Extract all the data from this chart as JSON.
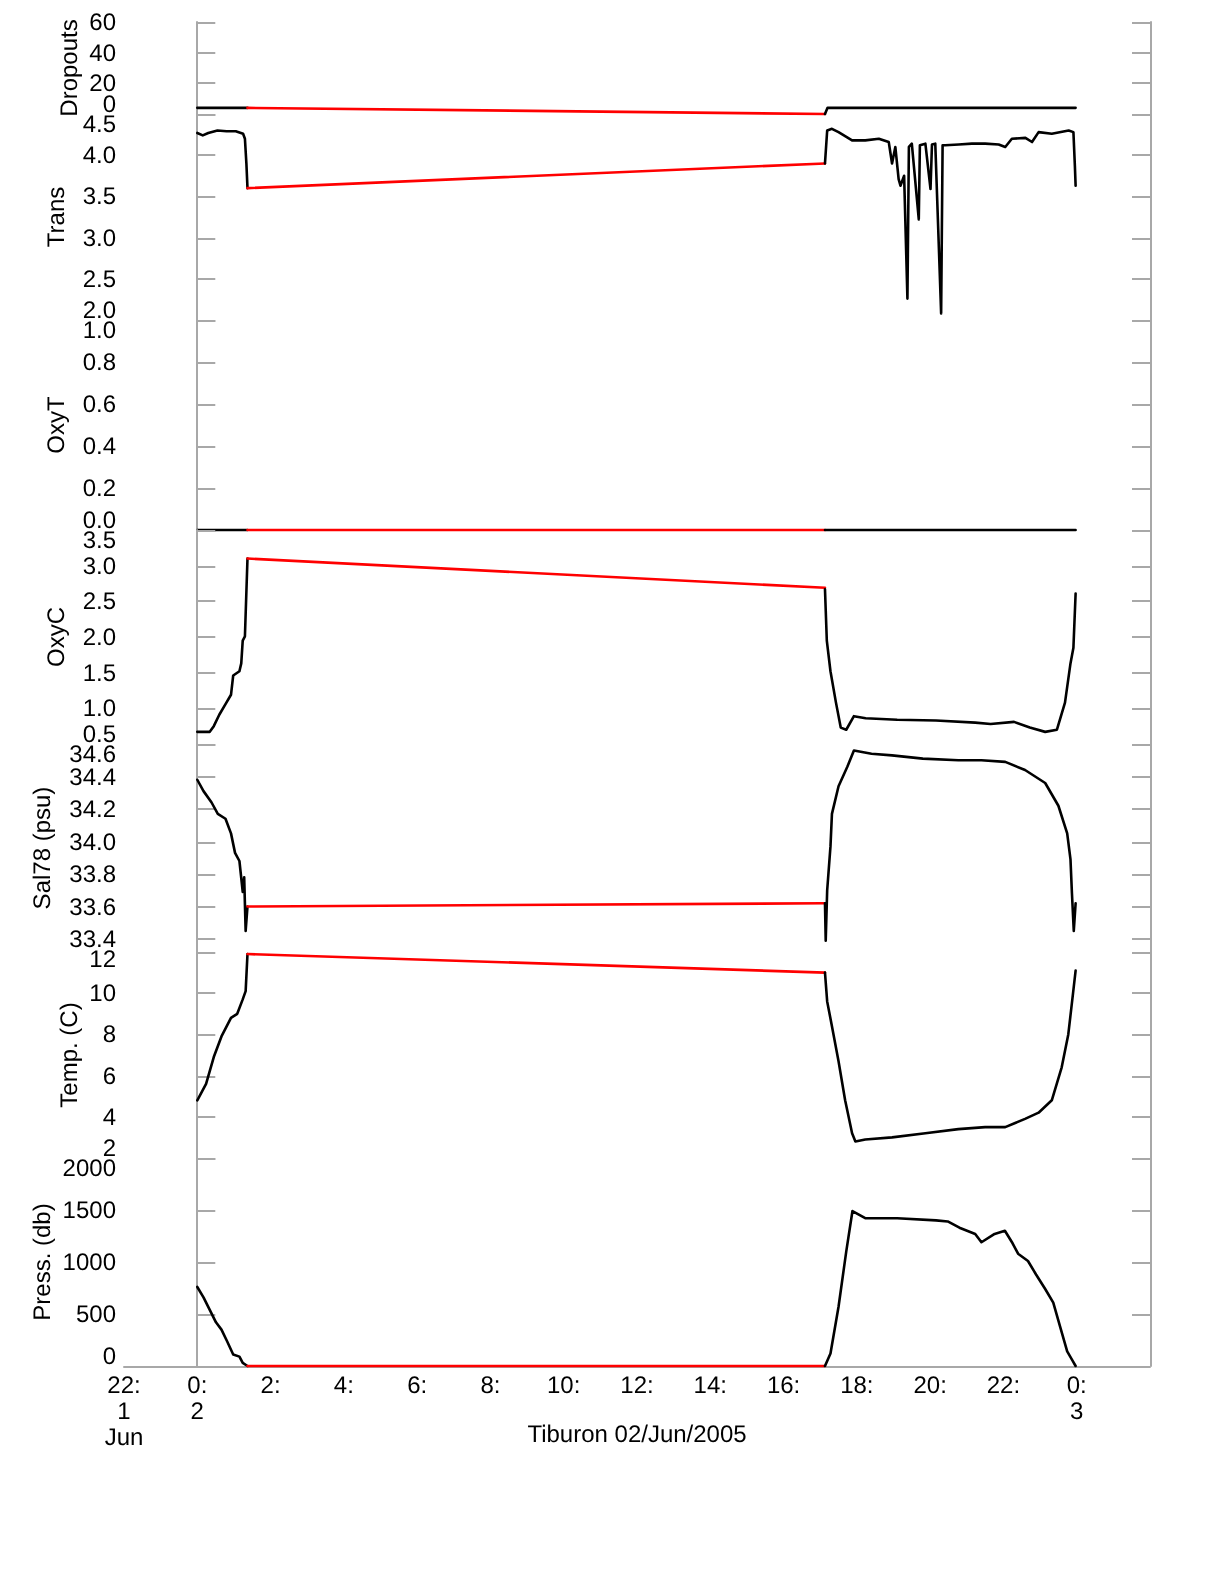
{
  "chart_data": [
    {
      "type": "line",
      "ylabel": "Dropouts",
      "xlim": [
        -2,
        26
      ],
      "ylim": [
        0,
        60
      ],
      "yticks": [
        0,
        20,
        40,
        60
      ],
      "tick_labels": "y",
      "series": [
        {
          "color": "#000000",
          "x": [
            0,
            0.35,
            0.7,
            1.05,
            1.37
          ],
          "values": [
            4,
            4,
            4,
            4,
            4
          ]
        },
        {
          "color": "#ff0000",
          "x": [
            1.37,
            17.13
          ],
          "values": [
            4,
            0
          ]
        },
        {
          "color": "#000000",
          "x": [
            17.13,
            17.2,
            18,
            19,
            20,
            21,
            22,
            23,
            23.97
          ],
          "values": [
            0,
            4,
            4,
            4,
            4,
            4,
            4,
            4,
            4
          ]
        }
      ]
    },
    {
      "type": "line",
      "ylabel": "Trans",
      "xlim": [
        -2,
        26
      ],
      "ylim": [
        2,
        4.5
      ],
      "yticks": [
        {
          "value": 2,
          "label": "2.0"
        },
        2.5,
        {
          "value": 3,
          "label": "3.0"
        },
        3.5,
        {
          "value": 4,
          "label": "4.0"
        },
        4.5
      ],
      "tick_labels": "y",
      "series": [
        {
          "color": "#000000",
          "x": [
            0,
            0.15,
            0.3,
            0.55,
            0.8,
            1.05,
            1.25,
            1.3,
            1.34,
            1.37
          ],
          "values": [
            4.27,
            4.24,
            4.27,
            4.3,
            4.29,
            4.29,
            4.26,
            4.2,
            3.9,
            3.6
          ]
        },
        {
          "color": "#ff0000",
          "x": [
            1.37,
            17.13
          ],
          "values": [
            3.6,
            3.9
          ]
        },
        {
          "color": "#000000",
          "x": [
            17.13,
            17.19,
            17.32,
            17.5,
            17.87,
            18.23,
            18.6,
            18.87,
            18.96,
            19.05,
            19.14,
            19.19,
            19.29,
            19.38,
            19.42,
            19.5,
            19.69,
            19.72,
            19.87,
            20.01,
            20.05,
            20.14,
            20.3,
            20.34,
            20.41,
            20.78,
            21.14,
            21.5,
            21.87,
            22.05,
            22.23,
            22.6,
            22.78,
            22.96,
            23.32,
            23.78,
            23.91,
            23.95,
            23.97
          ],
          "values": [
            3.9,
            4.3,
            4.32,
            4.28,
            4.18,
            4.18,
            4.2,
            4.16,
            3.9,
            4.1,
            3.71,
            3.63,
            3.75,
            2.26,
            4.1,
            4.14,
            3.22,
            4.12,
            4.14,
            3.59,
            4.13,
            4.14,
            2.08,
            4.12,
            4.12,
            4.13,
            4.14,
            4.14,
            4.13,
            4.1,
            4.2,
            4.21,
            4.16,
            4.28,
            4.26,
            4.3,
            4.28,
            3.87,
            3.63
          ]
        }
      ]
    },
    {
      "type": "line",
      "ylabel": "OxyT",
      "xlim": [
        -2,
        26
      ],
      "ylim": [
        0,
        1
      ],
      "yticks": [
        {
          "value": 0,
          "label": "0.0"
        },
        0.2,
        0.4,
        0.6,
        0.8,
        {
          "value": 1,
          "label": "1.0"
        }
      ],
      "tick_labels": "y",
      "series": [
        {
          "color": "#000000",
          "x": [
            0,
            0.7,
            1.37
          ],
          "values": [
            0,
            0,
            0
          ]
        },
        {
          "color": "#ff0000",
          "x": [
            1.37,
            17.13
          ],
          "values": [
            0,
            0
          ]
        },
        {
          "color": "#000000",
          "x": [
            17.13,
            20.5,
            23.97
          ],
          "values": [
            0,
            0,
            0
          ]
        }
      ]
    },
    {
      "type": "line",
      "ylabel": "OxyC",
      "xlim": [
        -2,
        26
      ],
      "ylim": [
        0.5,
        3.5
      ],
      "yticks": [
        0.5,
        {
          "value": 1,
          "label": "1.0"
        },
        1.5,
        {
          "value": 2,
          "label": "2.0"
        },
        2.5,
        {
          "value": 3,
          "label": "3.0"
        },
        3.5
      ],
      "tick_labels": "y",
      "series": [
        {
          "color": "#000000",
          "x": [
            0,
            0.34,
            0.45,
            0.6,
            0.77,
            0.92,
            0.98,
            1.15,
            1.2,
            1.24,
            1.3,
            1.37
          ],
          "values": [
            0.67,
            0.67,
            0.75,
            0.91,
            1.06,
            1.19,
            1.46,
            1.52,
            1.63,
            1.95,
            2.01,
            3.1
          ]
        },
        {
          "color": "#ff0000",
          "x": [
            1.37,
            17.13
          ],
          "values": [
            3.1,
            2.69
          ]
        },
        {
          "color": "#000000",
          "x": [
            17.13,
            17.18,
            17.28,
            17.43,
            17.56,
            17.71,
            17.92,
            18.24,
            19.1,
            20.16,
            21.23,
            21.65,
            22.29,
            22.72,
            23.14,
            23.46,
            23.68,
            23.83,
            23.91,
            23.97
          ],
          "values": [
            2.67,
            1.95,
            1.52,
            1.08,
            0.73,
            0.7,
            0.89,
            0.86,
            0.84,
            0.83,
            0.8,
            0.78,
            0.81,
            0.73,
            0.67,
            0.7,
            1.08,
            1.63,
            1.85,
            2.61
          ]
        }
      ]
    },
    {
      "type": "line",
      "ylabel": "Sal78 (psu)",
      "xlim": [
        -2,
        26
      ],
      "ylim": [
        33.32,
        34.6
      ],
      "yticks": [
        33.4,
        33.6,
        33.8,
        {
          "value": 34,
          "label": "34.0"
        },
        34.2,
        34.4,
        34.6
      ],
      "tick_labels": "y",
      "series": [
        {
          "color": "#000000",
          "x": [
            0,
            0.17,
            0.39,
            0.56,
            0.77,
            0.92,
            1.03,
            1.15,
            1.24,
            1.28,
            1.32,
            1.37
          ],
          "values": [
            34.38,
            34.31,
            34.24,
            34.17,
            34.14,
            34.05,
            33.93,
            33.88,
            33.69,
            33.78,
            33.45,
            33.6
          ]
        },
        {
          "color": "#ff0000",
          "x": [
            1.37,
            17.13
          ],
          "values": [
            33.6,
            33.62
          ]
        },
        {
          "color": "#000000",
          "x": [
            17.13,
            17.15,
            17.19,
            17.28,
            17.32,
            17.5,
            17.74,
            17.92,
            18.4,
            18.96,
            19.8,
            20.77,
            21.4,
            22.05,
            22.59,
            23.14,
            23.5,
            23.74,
            23.83,
            23.87,
            23.92,
            23.97
          ],
          "values": [
            33.62,
            33.39,
            33.7,
            33.97,
            34.17,
            34.34,
            34.46,
            34.56,
            34.54,
            34.53,
            34.51,
            34.5,
            34.5,
            34.49,
            34.44,
            34.36,
            34.22,
            34.05,
            33.89,
            33.68,
            33.45,
            33.62
          ]
        }
      ]
    },
    {
      "type": "line",
      "ylabel": "Temp. (C)",
      "xlim": [
        -2,
        26
      ],
      "ylim": [
        2,
        12
      ],
      "yticks": [
        2,
        4,
        6,
        8,
        10,
        12
      ],
      "tick_labels": "y",
      "series": [
        {
          "color": "#000000",
          "x": [
            0,
            0.24,
            0.45,
            0.66,
            0.92,
            1.09,
            1.24,
            1.32,
            1.37
          ],
          "values": [
            4.8,
            5.6,
            6.9,
            7.9,
            8.8,
            9.0,
            9.7,
            10.1,
            11.9
          ]
        },
        {
          "color": "#ff0000",
          "x": [
            1.37,
            17.13
          ],
          "values": [
            11.9,
            11.0
          ]
        },
        {
          "color": "#000000",
          "x": [
            17.13,
            17.19,
            17.32,
            17.5,
            17.68,
            17.87,
            17.96,
            18.23,
            18.96,
            19.87,
            20.77,
            21.5,
            22.05,
            22.32,
            22.59,
            22.96,
            23.32,
            23.59,
            23.77,
            23.9,
            23.97
          ],
          "values": [
            11.0,
            9.6,
            8.4,
            6.7,
            4.8,
            3.2,
            2.8,
            2.9,
            3.0,
            3.2,
            3.4,
            3.5,
            3.5,
            3.7,
            3.9,
            4.2,
            4.8,
            6.4,
            8.0,
            10.0,
            11.1
          ]
        }
      ]
    },
    {
      "type": "line",
      "ylabel": "Press. (db)",
      "xlabel": "Tiburon 02/Jun/2005",
      "xlim": [
        -2,
        26
      ],
      "xticks": [
        {
          "value": -2,
          "label": "22:\n1\nJun"
        },
        {
          "value": 0,
          "label": "0:\n2"
        },
        {
          "value": 2,
          "label": "2:"
        },
        {
          "value": 4,
          "label": "4:"
        },
        {
          "value": 6,
          "label": "6:"
        },
        {
          "value": 8,
          "label": "8:"
        },
        {
          "value": 10,
          "label": "10:"
        },
        {
          "value": 12,
          "label": "12:"
        },
        {
          "value": 14,
          "label": "14:"
        },
        {
          "value": 16,
          "label": "16:"
        },
        {
          "value": 18,
          "label": "18:"
        },
        {
          "value": 20,
          "label": "20:"
        },
        {
          "value": 22,
          "label": "22:"
        },
        {
          "value": 24,
          "label": "0:\n3"
        }
      ],
      "ylim": [
        0,
        2000
      ],
      "yticks": [
        0,
        500,
        1000,
        1500,
        2000
      ],
      "series": [
        {
          "color": "#000000",
          "x": [
            0,
            0.17,
            0.34,
            0.51,
            0.66,
            0.81,
            0.98,
            1.15,
            1.24,
            1.37
          ],
          "values": [
            760,
            660,
            540,
            420,
            350,
            240,
            110,
            90,
            30,
            0
          ]
        },
        {
          "color": "#ff0000",
          "x": [
            1.37,
            17.13
          ],
          "values": [
            0,
            0
          ]
        },
        {
          "color": "#000000",
          "x": [
            17.13,
            17.28,
            17.5,
            17.71,
            17.88,
            18.03,
            18.24,
            19.1,
            20.16,
            20.48,
            20.8,
            21.23,
            21.4,
            21.76,
            22.04,
            22.25,
            22.4,
            22.67,
            22.89,
            23.14,
            23.36,
            23.57,
            23.74,
            23.89,
            23.97
          ],
          "values": [
            0,
            120,
            570,
            1100,
            1490,
            1460,
            1420,
            1420,
            1400,
            1390,
            1330,
            1270,
            1190,
            1270,
            1300,
            1180,
            1080,
            1010,
            880,
            740,
            610,
            350,
            140,
            50,
            0
          ]
        }
      ]
    }
  ]
}
